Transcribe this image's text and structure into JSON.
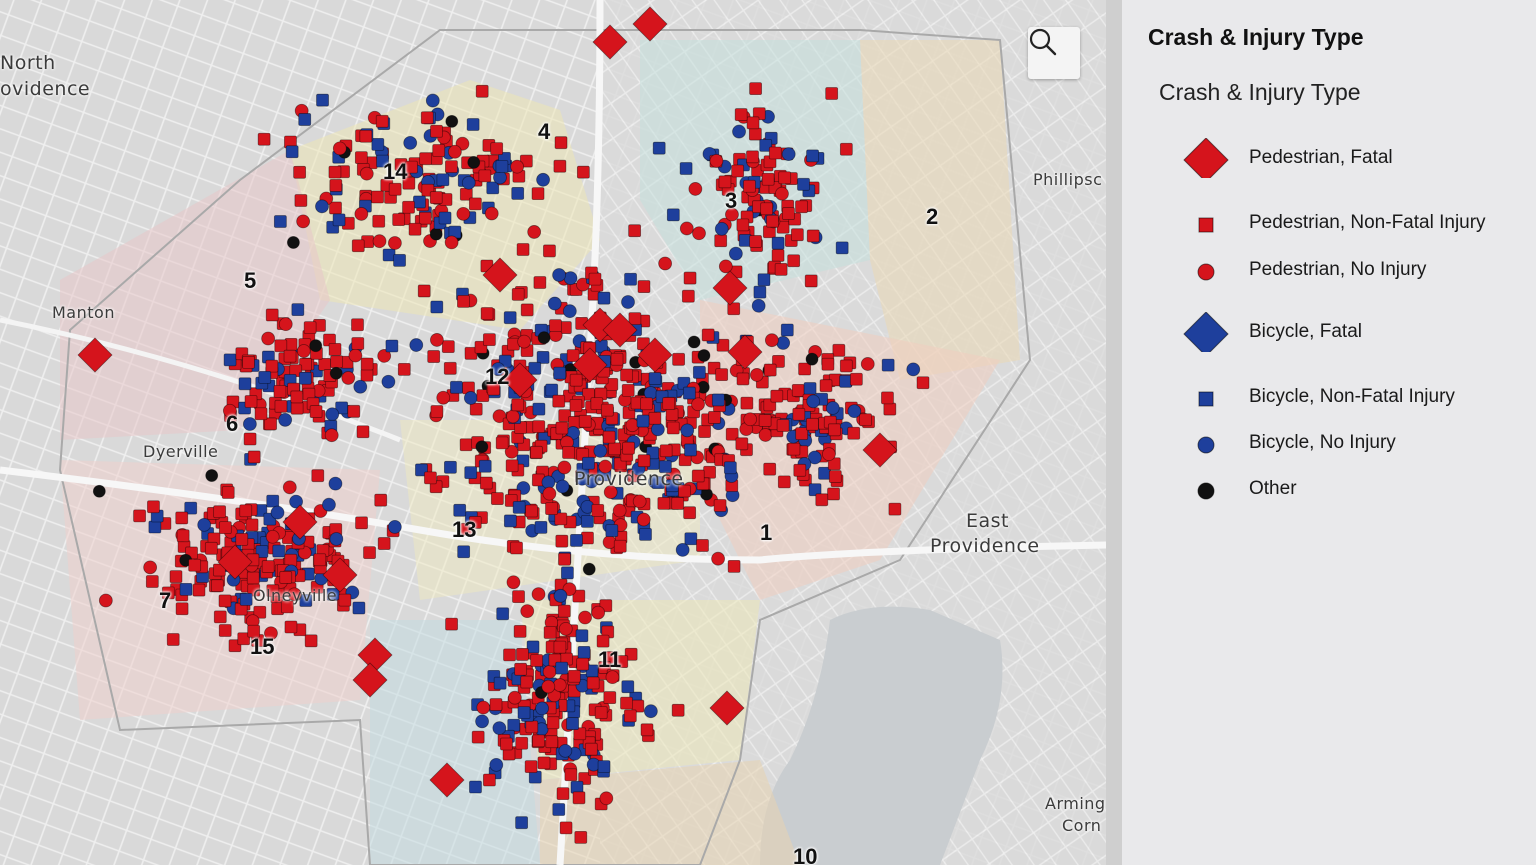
{
  "map": {
    "search_icon": "search-icon",
    "places": [
      "North",
      "ovidence",
      "Manton",
      "Dyerville",
      "Olneyville",
      "Providence",
      "Phillipsc",
      "East",
      "Providence",
      "Arming",
      "Corn"
    ],
    "wards": [
      "1",
      "2",
      "3",
      "4",
      "5",
      "6",
      "7",
      "10",
      "11",
      "12",
      "13",
      "14",
      "15"
    ]
  },
  "legend": {
    "title": "Crash & Injury Type",
    "subtitle": "Crash & Injury Type",
    "items": [
      {
        "label": "Pedestrian, Fatal",
        "shape": "diamond",
        "color": "#d5141c"
      },
      {
        "label": "Pedestrian, Non-Fatal Injury",
        "shape": "square",
        "color": "#d5141c"
      },
      {
        "label": "Pedestrian, No Injury",
        "shape": "circle",
        "color": "#d5141c"
      },
      {
        "label": "Bicycle, Fatal",
        "shape": "diamond",
        "color": "#1e3f9c"
      },
      {
        "label": "Bicycle, Non-Fatal Injury",
        "shape": "square",
        "color": "#1e3f9c"
      },
      {
        "label": "Bicycle, No Injury",
        "shape": "circle",
        "color": "#1e3f9c"
      },
      {
        "label": "Other",
        "shape": "circle",
        "color": "#111111"
      }
    ]
  }
}
